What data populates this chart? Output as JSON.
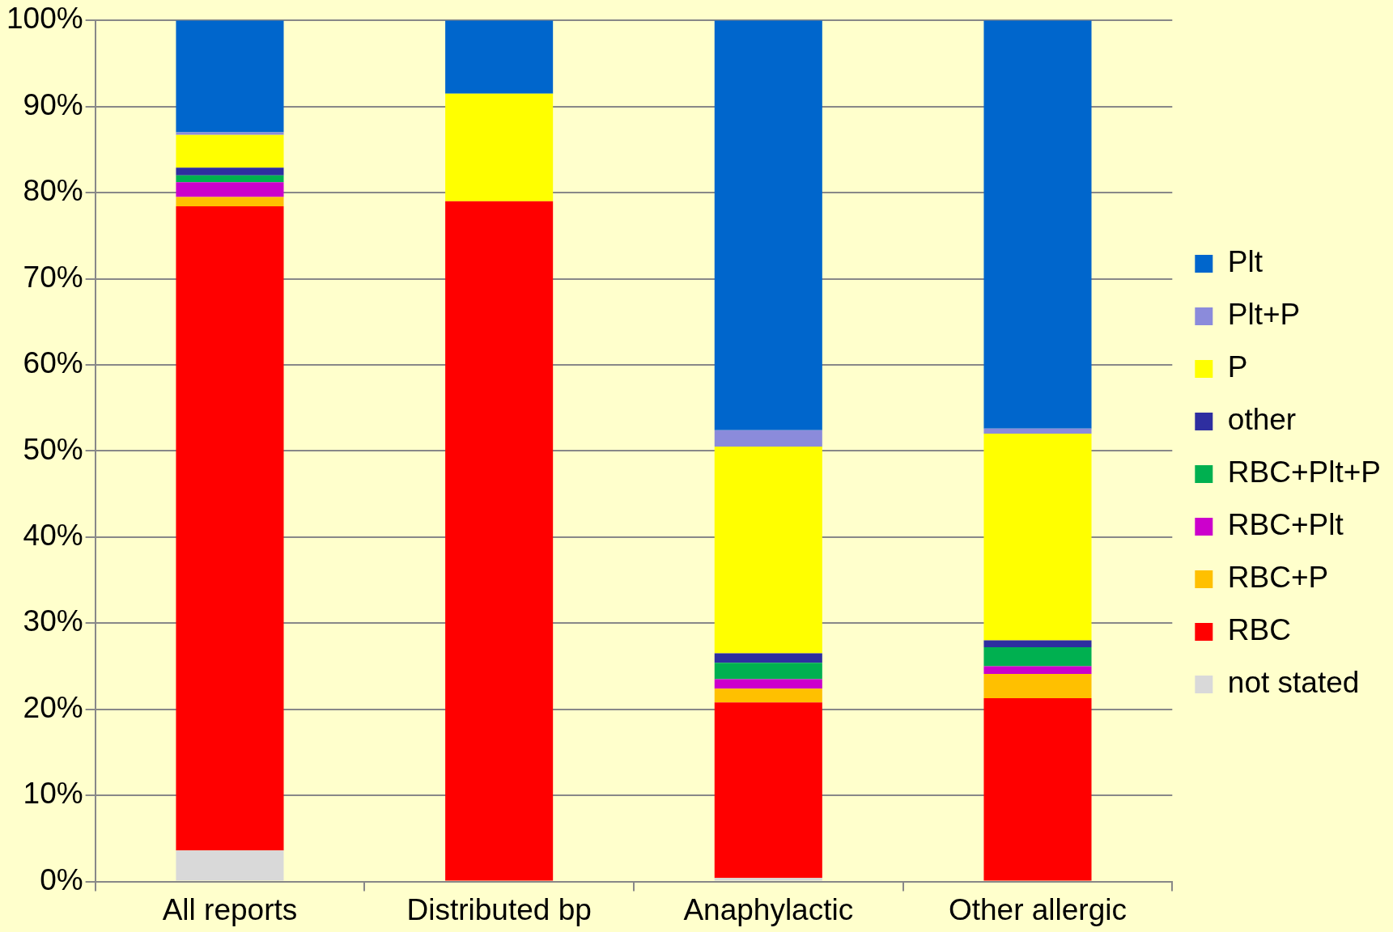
{
  "chart_data": {
    "type": "bar",
    "stacked": true,
    "categories": [
      "All reports",
      "Distributed bp",
      "Anaphylactic",
      "Other allergic"
    ],
    "series": [
      {
        "name": "not stated",
        "color": "#d9d9d9",
        "values": [
          3.6,
          0,
          0.4,
          0
        ]
      },
      {
        "name": "RBC",
        "color": "#ff0000",
        "values": [
          74.8,
          79.0,
          20.4,
          21.3
        ]
      },
      {
        "name": "RBC+P",
        "color": "#ffc000",
        "values": [
          1.1,
          0,
          1.6,
          2.8
        ]
      },
      {
        "name": "RBC+Plt",
        "color": "#cc00cc",
        "values": [
          1.7,
          0,
          1.1,
          0.9
        ]
      },
      {
        "name": "RBC+Plt+P",
        "color": "#00b050",
        "values": [
          0.8,
          0,
          1.9,
          2.2
        ]
      },
      {
        "name": "other",
        "color": "#2e2ea0",
        "values": [
          0.9,
          0,
          1.1,
          0.8
        ]
      },
      {
        "name": "P",
        "color": "#ffff00",
        "values": [
          3.8,
          12.5,
          24.0,
          24.0
        ]
      },
      {
        "name": "Plt+P",
        "color": "#8b8bdb",
        "values": [
          0.3,
          0,
          1.9,
          0.6
        ]
      },
      {
        "name": "Plt",
        "color": "#0066cc",
        "values": [
          13.0,
          8.5,
          47.6,
          47.4
        ]
      }
    ],
    "ylim": [
      0,
      100
    ],
    "yticks": [
      {
        "value": 0,
        "label": "0%"
      },
      {
        "value": 10,
        "label": "10%"
      },
      {
        "value": 20,
        "label": "20%"
      },
      {
        "value": 30,
        "label": "30%"
      },
      {
        "value": 40,
        "label": "40%"
      },
      {
        "value": 50,
        "label": "50%"
      },
      {
        "value": 60,
        "label": "60%"
      },
      {
        "value": 70,
        "label": "70%"
      },
      {
        "value": 80,
        "label": "80%"
      },
      {
        "value": 90,
        "label": "90%"
      },
      {
        "value": 100,
        "label": "100%"
      }
    ],
    "grid": "y",
    "legend": "right"
  }
}
